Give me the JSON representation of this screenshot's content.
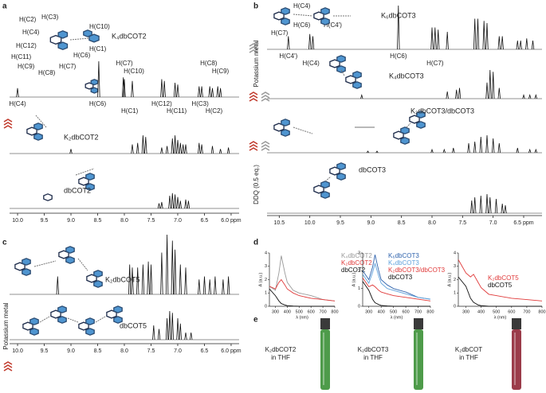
{
  "panels": {
    "a": {
      "label": "a",
      "xlim": [
        10.15,
        5.85
      ],
      "xticks": [
        {
          "value": 10,
          "label": "10.0"
        },
        9.5,
        {
          "value": 9,
          "label": "9.0"
        },
        8.5,
        {
          "value": 8,
          "label": "8.0"
        },
        7.5,
        {
          "value": 7,
          "label": "7.0"
        },
        6.5,
        {
          "value": 6,
          "label": "6.0 ppm"
        }
      ],
      "molecule_labels": [
        "H(C4)",
        "H(C3)",
        "H(C2)",
        "H(C10)",
        "H(C12)",
        "H(C1)",
        "H(C11)",
        "H(C6)",
        "H(C9)",
        "H(C8)",
        "H(C7)"
      ],
      "spectra": [
        {
          "name": "K₄dbCOT2",
          "ppm": [
            10.0,
            8.48,
            8.02,
            8.0,
            7.85,
            7.3,
            7.25,
            7.05,
            7.0,
            6.6,
            6.55,
            6.4,
            6.35,
            6.25,
            6.2
          ],
          "intensity": [
            0.25,
            1.0,
            0.55,
            0.5,
            0.45,
            0.5,
            0.45,
            0.4,
            0.35,
            0.3,
            0.3,
            0.3,
            0.25,
            0.3,
            0.25
          ],
          "upper_labels": [
            {
              "text": "H(C7)",
              "ppm": 8.0
            },
            {
              "text": "H(C10)",
              "ppm": 7.82
            },
            {
              "text": "H(C8)",
              "ppm": 6.42
            },
            {
              "text": "H(C9)",
              "ppm": 6.2
            }
          ],
          "lower_labels": [
            {
              "text": "H(C4)",
              "ppm": 10.0
            },
            {
              "text": "H(C1)",
              "ppm": 7.9
            },
            {
              "text": "H(C6)",
              "ppm": 8.5
            },
            {
              "text": "H(C11)",
              "ppm": 7.02
            },
            {
              "text": "H(C12)",
              "ppm": 7.3
            },
            {
              "text": "H(C2)",
              "ppm": 6.32
            },
            {
              "text": "H(C3)",
              "ppm": 6.58
            }
          ]
        },
        {
          "name": "K₂dbCOT2",
          "ppm": [
            9.0,
            7.85,
            7.75,
            7.65,
            7.6,
            7.3,
            7.2,
            7.1,
            7.05,
            7.0,
            6.95,
            6.9,
            6.85,
            6.6,
            6.55,
            6.35,
            6.2,
            6.05
          ],
          "intensity": [
            0.15,
            0.3,
            0.35,
            0.6,
            0.55,
            0.2,
            0.25,
            0.5,
            0.6,
            0.45,
            0.35,
            0.3,
            0.3,
            0.35,
            0.3,
            0.25,
            0.15,
            0.2
          ]
        },
        {
          "name": "dbCOT2",
          "ppm": [
            7.35,
            7.3,
            7.15,
            7.1,
            7.05,
            7.0,
            6.95,
            6.85,
            6.8
          ],
          "intensity": [
            0.2,
            0.25,
            0.5,
            0.6,
            0.55,
            0.45,
            0.3,
            0.35,
            0.3
          ]
        }
      ]
    },
    "b": {
      "label": "b",
      "xlim": [
        10.7,
        6.2
      ],
      "xticks": [
        10.5,
        {
          "value": 10,
          "label": "10.0"
        },
        9.5,
        {
          "value": 9,
          "label": "9.0"
        },
        8.5,
        {
          "value": 8,
          "label": "8.0"
        },
        7.5,
        {
          "value": 7,
          "label": "7.0"
        },
        {
          "value": 6.5,
          "label": "6.5 ppm"
        }
      ],
      "side_labels": [
        "Potassium metal",
        "DDQ (0.5 eq.)"
      ],
      "molecule_labels": [
        "H(C4)",
        "H(C6)",
        "H(C4')",
        "H(C7)"
      ],
      "spectra": [
        {
          "name": "K₆dbCOT3",
          "ppm": [
            10.35,
            10.0,
            9.95,
            8.55,
            8.0,
            7.95,
            7.9,
            7.75,
            7.3,
            7.25,
            7.15,
            7.1,
            6.9,
            6.85,
            6.6,
            6.55,
            6.45,
            6.35
          ],
          "intensity": [
            0.3,
            0.35,
            0.3,
            1.0,
            0.5,
            0.5,
            0.45,
            0.4,
            0.7,
            0.7,
            0.65,
            0.6,
            0.3,
            0.3,
            0.2,
            0.2,
            0.25,
            0.2
          ],
          "lower_labels": [
            {
              "text": "H(C4')",
              "ppm": 10.35
            },
            {
              "text": "H(C4)",
              "ppm": 9.98
            },
            {
              "text": "H(C6)",
              "ppm": 8.55
            },
            {
              "text": "H(C7)",
              "ppm": 7.95
            }
          ]
        },
        {
          "name": "K₄dbCOT3",
          "ppm": [
            9.15,
            7.75,
            7.6,
            7.55,
            7.1,
            7.05,
            7.0,
            6.9,
            6.5,
            6.4,
            6.3
          ],
          "intensity": [
            0.1,
            0.2,
            0.25,
            0.3,
            0.45,
            0.8,
            0.75,
            0.3,
            0.1,
            0.1,
            0.1
          ]
        },
        {
          "name": "K₂dbCOT3/dbCOT3",
          "ppm": [
            9.05,
            8.9,
            8.0,
            7.8,
            7.65,
            7.4,
            7.3,
            7.2,
            7.1,
            7.0,
            6.9,
            6.6,
            6.4,
            6.3
          ],
          "intensity": [
            0.05,
            0.05,
            0.1,
            0.1,
            0.15,
            0.3,
            0.35,
            0.5,
            0.55,
            0.45,
            0.3,
            0.15,
            0.1,
            0.1
          ]
        },
        {
          "name": "dbCOT3",
          "ppm": [
            7.35,
            7.3,
            7.2,
            7.1,
            7.05,
            6.95,
            6.85,
            6.8
          ],
          "intensity": [
            0.4,
            0.5,
            0.55,
            0.6,
            0.5,
            0.45,
            0.3,
            0.25
          ]
        }
      ]
    },
    "c": {
      "label": "c",
      "xlim": [
        10.15,
        5.85
      ],
      "xticks": [
        {
          "value": 10,
          "label": "10.0"
        },
        9.5,
        {
          "value": 9,
          "label": "9.0"
        },
        8.5,
        {
          "value": 8,
          "label": "8.0"
        },
        7.5,
        {
          "value": 7,
          "label": "7.0"
        },
        6.5,
        {
          "value": 6,
          "label": "6.0 ppm"
        }
      ],
      "side_labels": [
        "Potassium metal"
      ],
      "spectra": [
        {
          "name": "K₂dbCOT5",
          "ppm": [
            9.25,
            7.9,
            7.85,
            7.75,
            7.65,
            7.55,
            7.5,
            7.3,
            7.2,
            7.1,
            7.05,
            6.95,
            6.85,
            6.6,
            6.5,
            6.4,
            6.3,
            6.15,
            6.05
          ],
          "intensity": [
            0.3,
            0.5,
            0.45,
            0.45,
            0.5,
            0.55,
            0.5,
            0.7,
            1.0,
            0.9,
            0.75,
            0.5,
            0.45,
            0.25,
            0.3,
            0.25,
            0.3,
            0.25,
            0.3
          ]
        },
        {
          "name": "dbCOT5",
          "ppm": [
            7.45,
            7.35,
            7.2,
            7.15,
            7.1,
            7.0,
            6.95,
            6.85,
            6.75
          ],
          "intensity": [
            0.4,
            0.3,
            0.6,
            0.8,
            0.75,
            0.6,
            0.45,
            0.2,
            0.2
          ]
        }
      ]
    },
    "d": {
      "label": "d",
      "xlabel": "λ (nm)",
      "ylabel": "A (a.u.)",
      "plots": [
        {
          "xlim": [
            250,
            800
          ],
          "ylim": [
            0,
            4
          ],
          "xticks": [
            300,
            400,
            500,
            600,
            700,
            800
          ],
          "yticks": [
            0,
            1,
            2,
            3,
            4
          ],
          "x": [
            250,
            300,
            330,
            350,
            380,
            400,
            450,
            500,
            600,
            700,
            800
          ],
          "series": [
            {
              "name": "K₄dbCOT2",
              "color": "#9a9a9a",
              "values": [
                1.5,
                1.2,
                2.5,
                3.8,
                2.5,
                1.8,
                1.2,
                1.0,
                0.8,
                0.5,
                0.4
              ]
            },
            {
              "name": "K₂dbCOT2",
              "color": "#e03a3a",
              "values": [
                1.5,
                1.3,
                1.8,
                2.0,
                1.6,
                1.3,
                1.0,
                0.8,
                0.6,
                0.5,
                0.4
              ]
            },
            {
              "name": "dbCOT2",
              "color": "#111111",
              "values": [
                1.3,
                0.8,
                0.4,
                0.2,
                0.1,
                0.05,
                0.02,
                0,
                0,
                0,
                0
              ]
            }
          ]
        },
        {
          "xlim": [
            250,
            800
          ],
          "ylim": [
            0,
            3
          ],
          "xticks": [
            300,
            400,
            500,
            600,
            700,
            800
          ],
          "yticks": [
            0,
            1,
            2,
            3
          ],
          "x": [
            250,
            300,
            330,
            350,
            380,
            400,
            450,
            500,
            600,
            700,
            800
          ],
          "series": [
            {
              "name": "K₆dbCOT3",
              "color": "#2f63ad",
              "values": [
                2.0,
                1.5,
                2.2,
                2.9,
                2.0,
                1.5,
                1.2,
                1.0,
                0.8,
                0.5,
                0.4
              ]
            },
            {
              "name": "K₄dbCOT3",
              "color": "#5fa2dc",
              "values": [
                1.8,
                1.3,
                1.9,
                2.4,
                1.7,
                1.3,
                1.0,
                0.9,
                0.7,
                0.5,
                0.4
              ]
            },
            {
              "name": "K₂dbCOT3/dbCOT3",
              "color": "#e03a3a",
              "values": [
                1.6,
                1.1,
                1.2,
                1.1,
                0.9,
                0.8,
                0.7,
                0.6,
                0.5,
                0.4,
                0.3
              ]
            },
            {
              "name": "dbCOT3",
              "color": "#111111",
              "values": [
                1.4,
                0.9,
                0.4,
                0.2,
                0.1,
                0.05,
                0.02,
                0,
                0,
                0,
                0
              ]
            }
          ]
        },
        {
          "xlim": [
            250,
            800
          ],
          "ylim": [
            0,
            4
          ],
          "xticks": [
            300,
            400,
            500,
            600,
            700,
            800
          ],
          "yticks": [
            0,
            1,
            2,
            3,
            4
          ],
          "x": [
            250,
            300,
            330,
            350,
            380,
            400,
            450,
            500,
            600,
            700,
            800
          ],
          "series": [
            {
              "name": "K₂dbCOT5",
              "color": "#e03a3a",
              "values": [
                3.5,
                2.5,
                2.2,
                2.4,
                1.8,
                1.4,
                0.9,
                0.8,
                0.6,
                0.5,
                0.4
              ]
            },
            {
              "name": "dbCOT5",
              "color": "#111111",
              "values": [
                2.2,
                1.5,
                0.6,
                0.3,
                0.1,
                0.05,
                0,
                0,
                0,
                0,
                0
              ]
            }
          ]
        }
      ]
    },
    "e": {
      "label": "e",
      "items": [
        {
          "name": "K₂dbCOT2",
          "solvent": "in THF",
          "color": "#2f8a2a"
        },
        {
          "name": "K₂dbCOT3",
          "solvent": "in THF",
          "color": "#2f8a2a"
        },
        {
          "name": "K₂dbCOT",
          "solvent": "in THF",
          "color": "#8a1a2a"
        }
      ]
    }
  }
}
